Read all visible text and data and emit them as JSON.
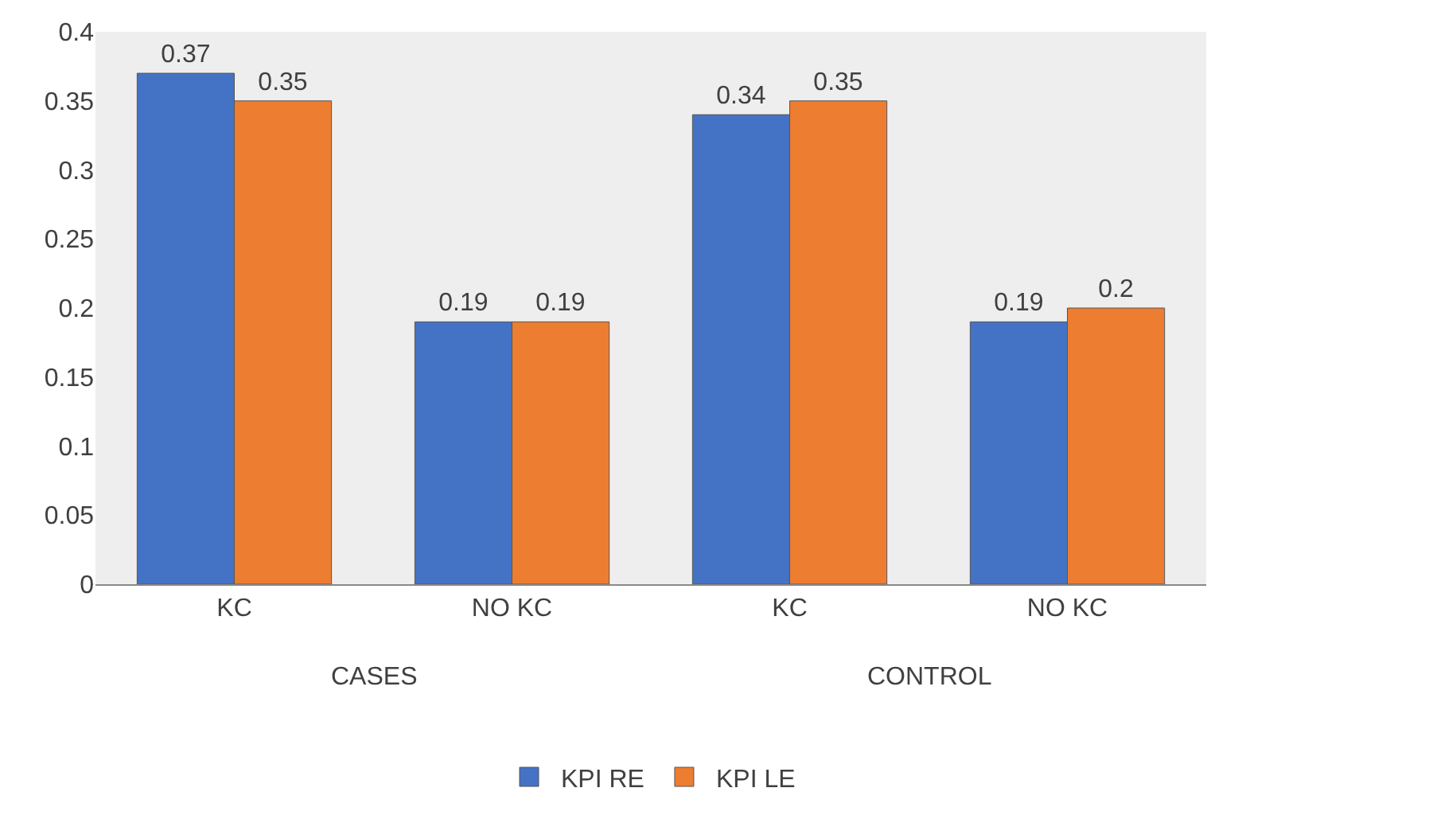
{
  "chart_data": {
    "type": "bar",
    "categories": [
      "KC",
      "NO KC",
      "KC",
      "NO KC"
    ],
    "series": [
      {
        "name": "KPI RE",
        "color": "#4472c4",
        "values": [
          0.37,
          0.19,
          0.34,
          0.19
        ]
      },
      {
        "name": "KPI LE",
        "color": "#ed7d31",
        "values": [
          0.35,
          0.19,
          0.35,
          0.2
        ]
      }
    ],
    "annotations": [
      "CASES",
      "CONTROL"
    ],
    "ylim": [
      0,
      0.4
    ],
    "yticks": [
      0,
      0.05,
      0.1,
      0.15,
      0.2,
      0.25,
      0.3,
      0.35,
      0.4
    ],
    "data_labels": true,
    "grid": false,
    "legend": "bottom"
  }
}
